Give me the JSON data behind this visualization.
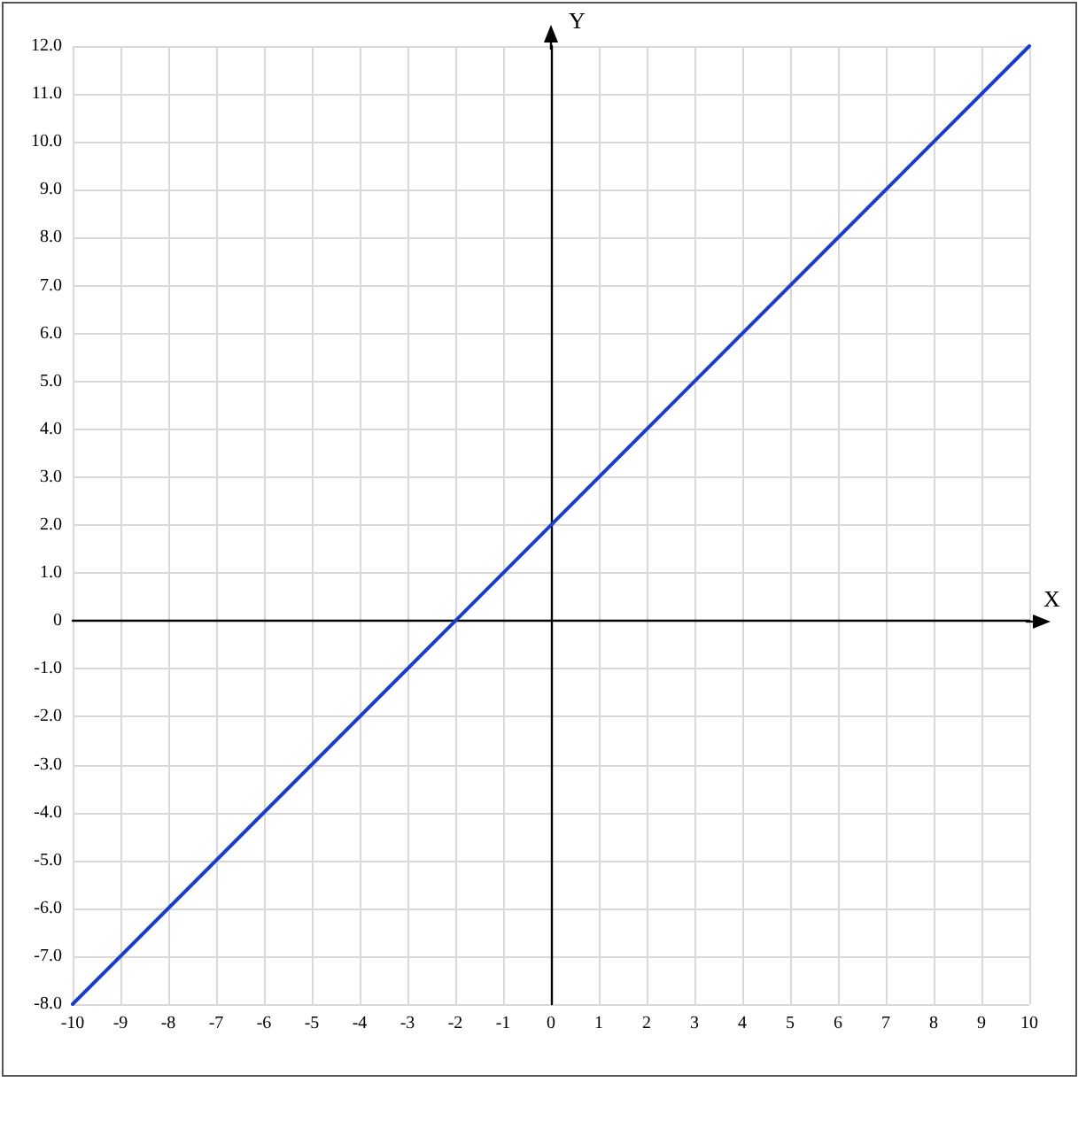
{
  "chart_data": {
    "type": "line",
    "xlabel": "X",
    "ylabel": "Y",
    "x": [
      -10,
      10
    ],
    "series": [
      {
        "color": "#1a3ccc",
        "values": [
          -8,
          12
        ]
      }
    ],
    "xlim": [
      -10,
      10
    ],
    "xticks": [
      -10,
      -9,
      -8,
      -7,
      -6,
      -5,
      -4,
      -3,
      -2,
      -1,
      0,
      1,
      2,
      3,
      4,
      5,
      6,
      7,
      8,
      9,
      10
    ],
    "ylim": [
      -8,
      12
    ],
    "yticks": [
      {
        "value": -8,
        "label": "-8.0"
      },
      {
        "value": -7,
        "label": "-7.0"
      },
      {
        "value": -6,
        "label": "-6.0"
      },
      {
        "value": -5,
        "label": "-5.0"
      },
      {
        "value": -4,
        "label": "-4.0"
      },
      {
        "value": -3,
        "label": "-3.0"
      },
      {
        "value": -2,
        "label": "-2.0"
      },
      {
        "value": -1,
        "label": "-1.0"
      },
      0,
      {
        "value": 1,
        "label": "1.0"
      },
      {
        "value": 2,
        "label": "2.0"
      },
      {
        "value": 3,
        "label": "3.0"
      },
      {
        "value": 4,
        "label": "4.0"
      },
      {
        "value": 5,
        "label": "5.0"
      },
      {
        "value": 6,
        "label": "6.0"
      },
      {
        "value": 7,
        "label": "7.0"
      },
      {
        "value": 8,
        "label": "8.0"
      },
      {
        "value": 9,
        "label": "9.0"
      },
      {
        "value": 10,
        "label": "10.0"
      },
      {
        "value": 11,
        "label": "11.0"
      },
      {
        "value": 12,
        "label": "12.0"
      }
    ],
    "grid": true,
    "marker": "none",
    "line_style": "solid"
  }
}
